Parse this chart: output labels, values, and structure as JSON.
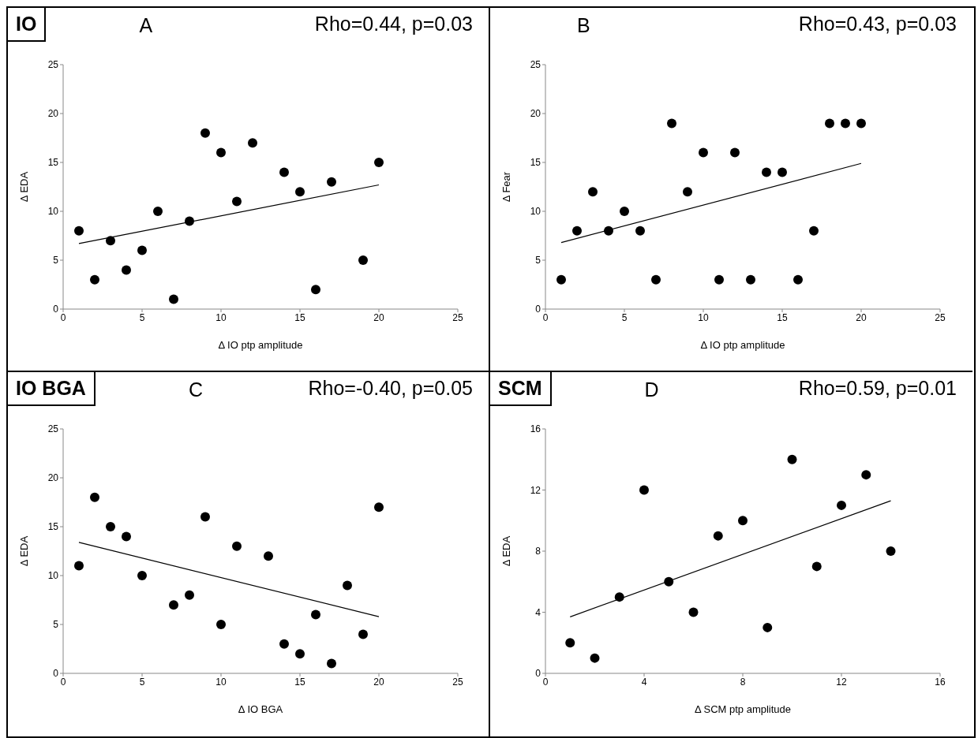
{
  "chart_data": [
    {
      "type": "scatter",
      "title": "IO",
      "subtitle": "A",
      "annotations": [
        "Rho=0.44, p=0.03"
      ],
      "xlabel": "Δ IO ptp amplitude",
      "ylabel": "Δ EDA",
      "xlim": [
        0,
        25
      ],
      "xticks": [
        0,
        5,
        10,
        15,
        20,
        25
      ],
      "ylim": [
        0,
        25
      ],
      "yticks": [
        0,
        5,
        10,
        15,
        20,
        25
      ],
      "series": [
        {
          "color": "#000000",
          "marker": "circle",
          "x": [
            1,
            2,
            3,
            4,
            5,
            6,
            7,
            8,
            9,
            10,
            11,
            12,
            14,
            15,
            16,
            17,
            19,
            20
          ],
          "values": [
            8,
            3,
            7,
            4,
            6,
            10,
            1,
            9,
            18,
            16,
            11,
            17,
            14,
            12,
            2,
            13,
            5,
            15
          ]
        },
        {
          "type": "line",
          "color": "#000000",
          "marker": "none",
          "x": [
            1,
            20
          ],
          "values": [
            6.7,
            12.7
          ]
        }
      ]
    },
    {
      "type": "scatter",
      "subtitle": "B",
      "annotations": [
        "Rho=0.43, p=0.03"
      ],
      "xlabel": "Δ IO ptp amplitude",
      "ylabel": "Δ Fear",
      "xlim": [
        0,
        25
      ],
      "xticks": [
        0,
        5,
        10,
        15,
        20,
        25
      ],
      "ylim": [
        0,
        25
      ],
      "yticks": [
        0,
        5,
        10,
        15,
        20,
        25
      ],
      "series": [
        {
          "color": "#000000",
          "marker": "circle",
          "x": [
            1,
            2,
            3,
            4,
            5,
            6,
            7,
            8,
            9,
            10,
            11,
            12,
            13,
            14,
            15,
            16,
            17,
            18,
            19,
            20
          ],
          "values": [
            3,
            8,
            12,
            8,
            10,
            8,
            3,
            19,
            12,
            16,
            3,
            16,
            3,
            14,
            14,
            3,
            8,
            19,
            19,
            19
          ]
        },
        {
          "type": "line",
          "color": "#000000",
          "marker": "none",
          "x": [
            1,
            20
          ],
          "values": [
            6.8,
            14.9
          ]
        }
      ]
    },
    {
      "type": "scatter",
      "title": "IO BGA",
      "subtitle": "C",
      "annotations": [
        "Rho=-0.40, p=0.05"
      ],
      "xlabel": "Δ IO BGA",
      "ylabel": "Δ EDA",
      "xlim": [
        0,
        25
      ],
      "xticks": [
        0,
        5,
        10,
        15,
        20,
        25
      ],
      "ylim": [
        0,
        25
      ],
      "yticks": [
        0,
        5,
        10,
        15,
        20,
        25
      ],
      "series": [
        {
          "color": "#000000",
          "marker": "circle",
          "x": [
            1,
            2,
            3,
            4,
            5,
            7,
            8,
            9,
            10,
            11,
            13,
            14,
            15,
            16,
            17,
            18,
            19,
            20
          ],
          "values": [
            11,
            18,
            15,
            14,
            10,
            7,
            8,
            16,
            5,
            13,
            12,
            3,
            2,
            6,
            1,
            9,
            4,
            17
          ]
        },
        {
          "type": "line",
          "color": "#000000",
          "marker": "none",
          "x": [
            1,
            20
          ],
          "values": [
            13.4,
            5.8
          ]
        }
      ]
    },
    {
      "type": "scatter",
      "title": "SCM",
      "subtitle": "D",
      "annotations": [
        "Rho=0.59, p=0.01"
      ],
      "xlabel": "Δ SCM ptp amplitude",
      "ylabel": "Δ EDA",
      "xlim": [
        0,
        16
      ],
      "xticks": [
        0,
        4,
        8,
        12,
        16
      ],
      "ylim": [
        0,
        16
      ],
      "yticks": [
        0,
        4,
        8,
        12,
        16
      ],
      "series": [
        {
          "color": "#000000",
          "marker": "circle",
          "x": [
            1,
            2,
            3,
            4,
            5,
            6,
            7,
            8,
            9,
            10,
            11,
            12,
            13,
            14
          ],
          "values": [
            2,
            1,
            5,
            12,
            6,
            4,
            9,
            10,
            3,
            14,
            7,
            11,
            13,
            8
          ]
        },
        {
          "type": "line",
          "color": "#000000",
          "marker": "none",
          "x": [
            1,
            14
          ],
          "values": [
            3.7,
            11.3
          ]
        }
      ]
    }
  ]
}
